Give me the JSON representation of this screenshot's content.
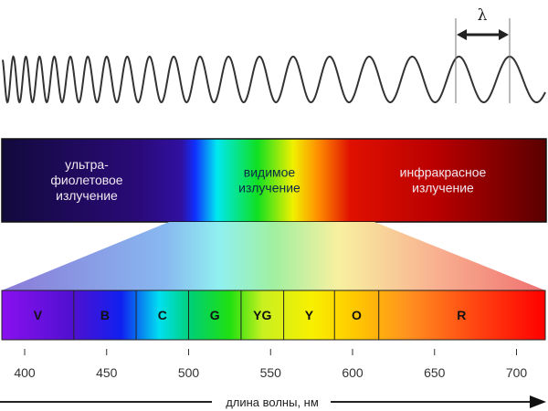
{
  "wave": {
    "symbol": "λ"
  },
  "regions": [
    {
      "lines": [
        "ультра-",
        "фиолетовое",
        "излучение"
      ]
    },
    {
      "lines": [
        "видимое",
        "излучение"
      ]
    },
    {
      "lines": [
        "инфракрасное",
        "излучение"
      ]
    }
  ],
  "bands": [
    {
      "label": "V",
      "from_nm": 386,
      "to_nm": 430
    },
    {
      "label": "B",
      "from_nm": 430,
      "to_nm": 468
    },
    {
      "label": "C",
      "from_nm": 468,
      "to_nm": 500
    },
    {
      "label": "G",
      "from_nm": 500,
      "to_nm": 532
    },
    {
      "label": "YG",
      "from_nm": 532,
      "to_nm": 558
    },
    {
      "label": "Y",
      "from_nm": 558,
      "to_nm": 589
    },
    {
      "label": "O",
      "from_nm": 589,
      "to_nm": 616
    },
    {
      "label": "R",
      "from_nm": 616,
      "to_nm": 717
    }
  ],
  "axis": {
    "ticks": [
      "400",
      "450",
      "500",
      "550",
      "600",
      "650",
      "700"
    ],
    "label": "длина волны, нм"
  }
}
